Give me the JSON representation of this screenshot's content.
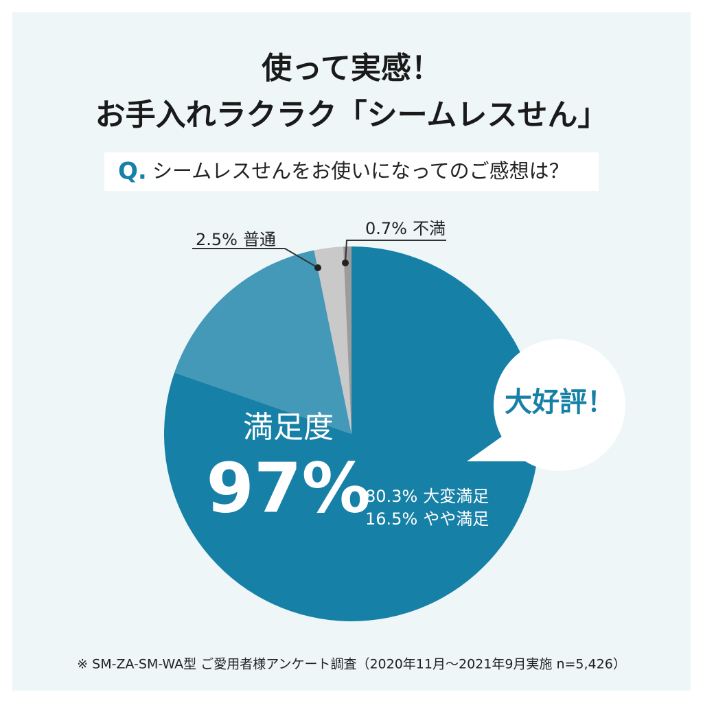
{
  "chart_data": {
    "type": "pie",
    "title": [
      "使って実感！",
      "お手入れラクラク「シームレスせん」"
    ],
    "question_prefix": "Q.",
    "question": "シームレスせんをお使いになってのご感想は？",
    "categories": [
      "大変満足",
      "やや満足",
      "普通",
      "不満"
    ],
    "values": [
      80.3,
      16.5,
      2.5,
      0.7
    ],
    "value_labels": [
      "80.3%",
      "16.5%",
      "2.5%",
      "0.7%"
    ],
    "colors": [
      "#1780a6",
      "#4498b8",
      "#c9c9c9",
      "#9c9c9c"
    ],
    "center_label": "満足度",
    "center_value": "97%",
    "bubble": "大好評！",
    "note": "※ SM-ZA-SM-WA型 ご愛用者様アンケート調査（2020年11月〜2021年9月実施 n=5,426）"
  }
}
